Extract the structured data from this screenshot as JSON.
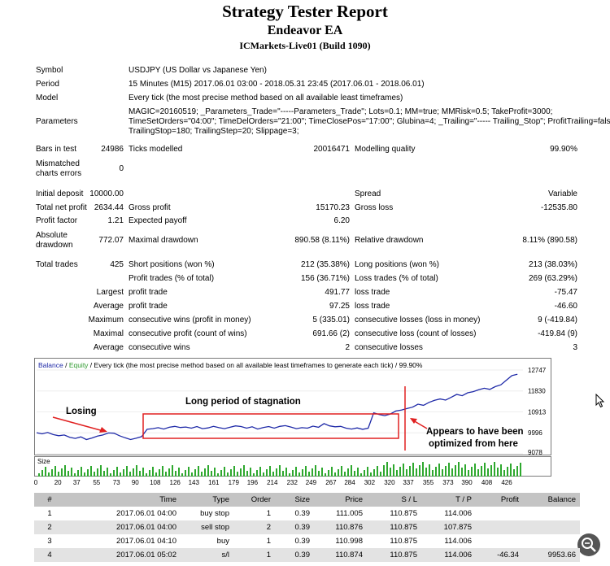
{
  "header": {
    "title": "Strategy Tester Report",
    "ea_name": "Endeavor EA",
    "server": "ICMarkets-Live01 (Build 1090)"
  },
  "summary": {
    "symbol_label": "Symbol",
    "symbol": "USDJPY (US Dollar vs Japanese Yen)",
    "period_label": "Period",
    "period": "15 Minutes (M15) 2017.06.01 03:00 - 2018.05.31 23:45 (2017.06.01 - 2018.06.01)",
    "model_label": "Model",
    "model": "Every tick (the most precise method based on all available least timeframes)",
    "parameters_label": "Parameters",
    "parameters_lines": [
      "MAGIC=20160519; _Parameters_Trade=\"-----Parameters_Trade\"; Lots=0.1; MM=true; MMRisk=0.5; TakeProfit=3000;",
      "TimeSetOrders=\"04:00\"; TimeDelOrders=\"21:00\"; TimeClosePos=\"17:00\"; Glubina=4; _Trailing=\"----- Trailing_Stop\"; ProfitTrailing=false;",
      "TrailingStop=180; TrailingStep=20; Slippage=3;"
    ],
    "bars_label": "Bars in test",
    "bars": "24986",
    "ticks_label": "Ticks modelled",
    "ticks": "20016471",
    "quality_label": "Modelling quality",
    "quality": "99.90%",
    "mismatched_label_1": "Mismatched",
    "mismatched_label_2": "charts errors",
    "mismatched": "0",
    "initial_deposit_label": "Initial deposit",
    "initial_deposit": "10000.00",
    "spread_label": "Spread",
    "spread": "Variable",
    "net_profit_label": "Total net profit",
    "net_profit": "2634.44",
    "gross_profit_label": "Gross profit",
    "gross_profit": "15170.23",
    "gross_loss_label": "Gross loss",
    "gross_loss": "-12535.80",
    "profit_factor_label": "Profit factor",
    "profit_factor": "1.21",
    "expected_payoff_label": "Expected payoff",
    "expected_payoff": "6.20",
    "abs_drawdown_label_1": "Absolute",
    "abs_drawdown_label_2": "drawdown",
    "abs_drawdown": "772.07",
    "max_drawdown_label": "Maximal drawdown",
    "max_drawdown": "890.58 (8.11%)",
    "rel_drawdown_label": "Relative drawdown",
    "rel_drawdown": "8.11% (890.58)",
    "total_trades_label": "Total trades",
    "total_trades": "425",
    "short_label": "Short positions (won %)",
    "short": "212 (35.38%)",
    "long_label": "Long positions (won %)",
    "long": "213 (38.03%)",
    "profit_trades_label": "Profit trades (% of total)",
    "profit_trades": "156 (36.71%)",
    "loss_trades_label": "Loss trades (% of total)",
    "loss_trades": "269 (63.29%)",
    "largest_label": "Largest",
    "largest_profit_label": "profit trade",
    "largest_profit": "491.77",
    "largest_loss_label": "loss trade",
    "largest_loss": "-75.47",
    "average_label": "Average",
    "average_profit_label": "profit trade",
    "average_profit": "97.25",
    "average_loss_label": "loss trade",
    "average_loss": "-46.60",
    "maximum_label": "Maximum",
    "max_cons_wins_label": "consecutive wins (profit in money)",
    "max_cons_wins": "5 (335.01)",
    "max_cons_losses_label": "consecutive losses (loss in money)",
    "max_cons_losses": "9 (-419.84)",
    "maximal_label": "Maximal",
    "maximal_cons_profit_label": "consecutive profit (count of wins)",
    "maximal_cons_profit": "691.66 (2)",
    "maximal_cons_loss_label": "consecutive loss (count of losses)",
    "maximal_cons_loss": "-419.84 (9)",
    "average2_label": "Average",
    "avg_cons_wins_label": "consecutive wins",
    "avg_cons_wins": "2",
    "avg_cons_losses_label": "consecutive losses",
    "avg_cons_losses": "3"
  },
  "chart_data": {
    "type": "line",
    "legend_balance": "Balance",
    "legend_sep": " / ",
    "legend_equity": "Equity",
    "legend_rest": " / Every tick (the most precise method based on all available least timeframes to generate each tick) / 99.90%",
    "y_ticks": [
      "12747",
      "11830",
      "10913",
      "9996",
      "9078"
    ],
    "ylim": [
      9078,
      12747
    ],
    "x_ticks": [
      "0",
      "20",
      "37",
      "55",
      "73",
      "90",
      "108",
      "126",
      "143",
      "161",
      "179",
      "196",
      "214",
      "232",
      "249",
      "267",
      "284",
      "302",
      "320",
      "337",
      "355",
      "373",
      "390",
      "408",
      "426"
    ],
    "xlim": [
      0,
      440
    ],
    "series": [
      {
        "name": "Balance",
        "color": "#1f2aa8",
        "x": [
          0,
          5,
          10,
          15,
          20,
          25,
          30,
          35,
          40,
          45,
          50,
          55,
          60,
          65,
          70,
          75,
          80,
          85,
          90,
          95,
          100,
          105,
          110,
          115,
          120,
          125,
          130,
          135,
          140,
          145,
          150,
          155,
          160,
          165,
          170,
          175,
          180,
          185,
          190,
          195,
          200,
          205,
          210,
          215,
          220,
          225,
          230,
          235,
          240,
          245,
          250,
          255,
          260,
          265,
          270,
          275,
          280,
          285,
          290,
          295,
          300,
          305,
          310,
          315,
          320,
          325,
          330,
          335,
          340,
          345,
          350,
          355,
          360,
          365,
          370,
          375,
          380,
          385,
          390,
          395,
          400,
          405,
          410,
          415,
          420,
          425,
          430,
          435
        ],
        "y": [
          10000,
          9950,
          10010,
          9920,
          9870,
          9900,
          9800,
          9750,
          9820,
          9700,
          9770,
          9850,
          9900,
          9990,
          9980,
          9870,
          9780,
          9700,
          9760,
          9830,
          10150,
          10180,
          10220,
          10160,
          10240,
          10280,
          10230,
          10250,
          10200,
          10270,
          10180,
          10210,
          10280,
          10220,
          10180,
          10240,
          10300,
          10270,
          10200,
          10260,
          10160,
          10230,
          10270,
          10200,
          10280,
          10310,
          10250,
          10180,
          10220,
          10200,
          10290,
          10240,
          10400,
          10300,
          10260,
          10280,
          10200,
          10160,
          10210,
          10150,
          10200,
          10870,
          10800,
          10750,
          10820,
          10950,
          10990,
          11060,
          11120,
          11250,
          11200,
          11330,
          11420,
          11480,
          11430,
          11550,
          11680,
          11620,
          11750,
          11800,
          11880,
          11950,
          11900,
          12020,
          12100,
          12300,
          12500,
          12560
        ]
      }
    ]
  },
  "annotations": {
    "losing": "Losing",
    "stagnation": "Long period of stagnation",
    "optimized_1": "Appears to have been",
    "optimized_2": "optimized from here"
  },
  "volume": {
    "label": "Size"
  },
  "orders": {
    "headers": [
      "#",
      "Time",
      "Type",
      "Order",
      "Size",
      "Price",
      "S / L",
      "T / P",
      "Profit",
      "Balance"
    ],
    "rows": [
      [
        "1",
        "2017.06.01 04:00",
        "buy stop",
        "1",
        "0.39",
        "111.005",
        "110.875",
        "114.006",
        "",
        ""
      ],
      [
        "2",
        "2017.06.01 04:00",
        "sell stop",
        "2",
        "0.39",
        "110.876",
        "110.875",
        "107.875",
        "",
        ""
      ],
      [
        "3",
        "2017.06.01 04:10",
        "buy",
        "1",
        "0.39",
        "110.998",
        "110.875",
        "114.006",
        "",
        ""
      ],
      [
        "4",
        "2017.06.01 05:02",
        "s/l",
        "1",
        "0.39",
        "110.874",
        "110.875",
        "114.006",
        "-46.34",
        "9953.66"
      ]
    ]
  },
  "colors": {
    "balance_line": "#1f2aa8",
    "equity_label": "#2e9a2e",
    "volume_bars": "#2ea82e",
    "annotation_red": "#e02020",
    "table_header": "#c4c4c4"
  }
}
